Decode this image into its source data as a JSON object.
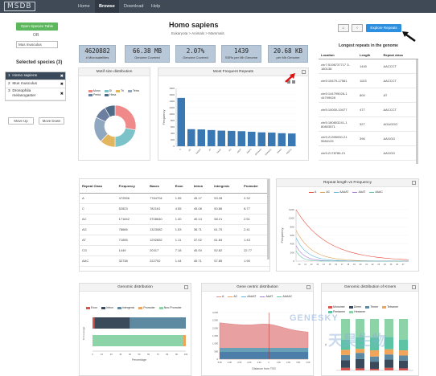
{
  "nav": {
    "logo": "MSDB",
    "items": [
      "Home",
      "Browse",
      "Download",
      "Help"
    ],
    "active_index": 1
  },
  "sidebar": {
    "open_table_label": "Open Species Table",
    "or_label": "OR",
    "search_value": "Mus musculus",
    "selected_title": "Selected species (3)",
    "species": [
      {
        "num": "1",
        "name": "Homo sapiens"
      },
      {
        "num": "2",
        "name": "Mus musculus"
      },
      {
        "num": "3",
        "name": "Drosophila melanogaster"
      }
    ],
    "move_up": "Move Up",
    "move_down": "Move Down"
  },
  "header": {
    "title": "Homo sapiens",
    "subtitle": "Eukaryota > Animals > Mammals"
  },
  "stats": [
    {
      "value": "4620882",
      "label": "# Microsatellites"
    },
    {
      "value": "66.38 MB",
      "label": "Genome Covered"
    },
    {
      "value": "2.07%",
      "label": "Genome Covered"
    },
    {
      "value": "1439",
      "label": "SSRs per Mb Genome"
    },
    {
      "value": "20.68 KB",
      "label": "per Mb Genome"
    }
  ],
  "actions": {
    "explore": "Explore Repeats"
  },
  "longest": {
    "title": "Longest repeats in the genome",
    "headers": [
      "Location",
      "Length",
      "Repeat class"
    ],
    "rows": [
      [
        "chr7:5198737717 3-180138",
        "1440",
        "AACCCT"
      ],
      [
        "chr5:15479-17581",
        "1103",
        "AACCCT"
      ],
      [
        "chr5:144799028-1 44799928",
        "800",
        "AT"
      ],
      [
        "chr5:10000-10477",
        "477",
        "AACCCT"
      ],
      [
        "chr5:180803241-1 80803571",
        "327",
        "AGAGGG"
      ],
      [
        "chr5:21395930-21 9584125",
        "396",
        "AAGGG"
      ],
      [
        "chr5:2178786-21",
        "",
        "AAGGG"
      ]
    ]
  },
  "motif_panel": {
    "title": "Motif size distribution",
    "legend": [
      "Mono",
      "Di",
      "Tri",
      "Tetra",
      "Penta",
      "Hexa"
    ]
  },
  "freq_panel": {
    "title": "Most Frequent Repeats",
    "ylabel": "Frequency"
  },
  "chart_data": [
    {
      "type": "pie",
      "title": "Motif size distribution",
      "categories": [
        "Mono",
        "Di",
        "Tri",
        "Tetra",
        "Penta",
        "Hexa"
      ],
      "values": [
        28,
        22,
        12,
        20,
        10,
        8
      ],
      "colors": [
        "#f08a8a",
        "#7bc3c8",
        "#e3b55d",
        "#8fa8c0",
        "#6d7fa0",
        "#4e6a86"
      ]
    },
    {
      "type": "bar",
      "title": "Most Frequent Repeats",
      "categories": [
        "A",
        "AC",
        "AAAAT",
        "AT",
        "AAAC",
        "AG",
        "AAAT",
        "AAGG",
        "AAAAAG",
        "AAAAAC",
        "AAAG",
        "AAAC2"
      ],
      "values": [
        1670000,
        590000,
        580000,
        560000,
        540000,
        530000,
        520000,
        500000,
        480000,
        470000,
        450000,
        440000
      ],
      "ylabel": "Frequency",
      "ylim": [
        0,
        2000000
      ],
      "ytick_labels": [
        "0",
        "200",
        "400",
        "600",
        "800",
        "1000",
        "1200",
        "1400",
        "1600",
        "1800"
      ]
    },
    {
      "type": "line",
      "title": "Repeat length vs Frequency",
      "series_names": [
        "A",
        "AC",
        "AAAAT",
        "AAAT",
        "AAAC"
      ],
      "ylabel": "Frequency"
    },
    {
      "type": "bar",
      "title": "Genomic distribution",
      "categories": [
        "Exon",
        "Intron",
        "Intergenic",
        "Promoter",
        "Non-Promoter"
      ],
      "xlabel": "Percentage"
    },
    {
      "type": "area",
      "title": "Gene centric distribution",
      "xlabel": "Distance from TSS",
      "series_names": [
        "A",
        "AC",
        "AAAAT",
        "AAAT",
        "AAAAC"
      ]
    },
    {
      "type": "bar",
      "title": "Genomic distribution of Kmers",
      "legend": [
        "Monomer",
        "Dimer",
        "Trimer",
        "Tetramer",
        "Pentamer",
        "Hexamer"
      ]
    }
  ],
  "repeat_table": {
    "headers": [
      "Repeat Class",
      "Frequency",
      "Bases",
      "Exon",
      "Intron",
      "Intergenic",
      "Promoter"
    ],
    "rows": [
      [
        "A",
        "472556",
        "7784704",
        "1.55",
        "45.17",
        "53.28",
        "2.32"
      ],
      [
        "C",
        "52823",
        "782161",
        "4.55",
        "45.08",
        "50.86",
        "8.77"
      ],
      [
        "AC",
        "171842",
        "3708640",
        "1.40",
        "40.14",
        "58.21",
        "2.51"
      ],
      [
        "AG",
        "78666",
        "1323082",
        "1.53",
        "36.71",
        "61.70",
        "2.41"
      ],
      [
        "AT",
        "71655",
        "1292652",
        "1.11",
        "37.02",
        "61.84",
        "1.43"
      ],
      [
        "CG",
        "1449",
        "20317",
        "7.18",
        "40.00",
        "52.82",
        "22.77"
      ],
      [
        "AAC",
        "32738",
        "222752",
        "1.44",
        "40.71",
        "57.85",
        "1.90"
      ]
    ]
  },
  "length_panel": {
    "title": "Repeat length vs Frequency",
    "legend": [
      "A",
      "AC",
      "AAAAT",
      "AAAT",
      "AAAC"
    ]
  },
  "genomic_panel": {
    "title": "Genomic distribution",
    "legend": [
      "Exon",
      "Intron",
      "Intergenic",
      "Promoter",
      "Non-Promoter"
    ],
    "ylabel": "% Coverage",
    "xlabel": "Percentage"
  },
  "gene_panel": {
    "title": "Gene centric distribution",
    "legend": [
      "A",
      "AC",
      "AAAAT",
      "AAAT",
      "AAAAC"
    ],
    "xlabel": "Distance from TSS"
  },
  "kmer_panel": {
    "title": "Genomic distribution of Kmers",
    "legend": [
      "Monomer",
      "Dimer",
      "Trimer",
      "Tetramer",
      "Pentamer",
      "Hexamer"
    ]
  },
  "watermark": {
    "line1": "GENESKY",
    "line2": "天昊生物"
  }
}
